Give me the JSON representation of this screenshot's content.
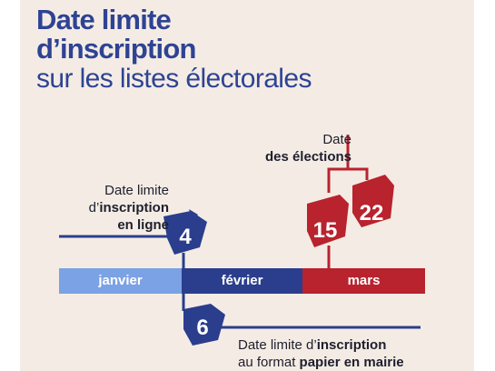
{
  "title": {
    "line1": "Date limite",
    "line2": "d’inscription",
    "line3": "sur les listes électorales"
  },
  "labels": {
    "online": {
      "line1": "Date limite",
      "line2_prefix": "d’",
      "line2_bold": "inscription",
      "line3_bold": "en ligne"
    },
    "elections": {
      "line1": "Date",
      "line2_bold": "des élections"
    },
    "paper": {
      "line1_prefix": "Date limite d’",
      "line1_bold": "inscription",
      "line2_prefix": "au format ",
      "line2_bold": "papier en mairie"
    }
  },
  "months": [
    "janvier",
    "février",
    "mars"
  ],
  "dates": {
    "online": "4",
    "paper": "6",
    "first_round": "15",
    "second_round": "22"
  },
  "colors": {
    "navy": "#2a3e8d",
    "light_blue": "#7aa2e4",
    "red": "#b8232e",
    "background": "#f4ece4"
  }
}
